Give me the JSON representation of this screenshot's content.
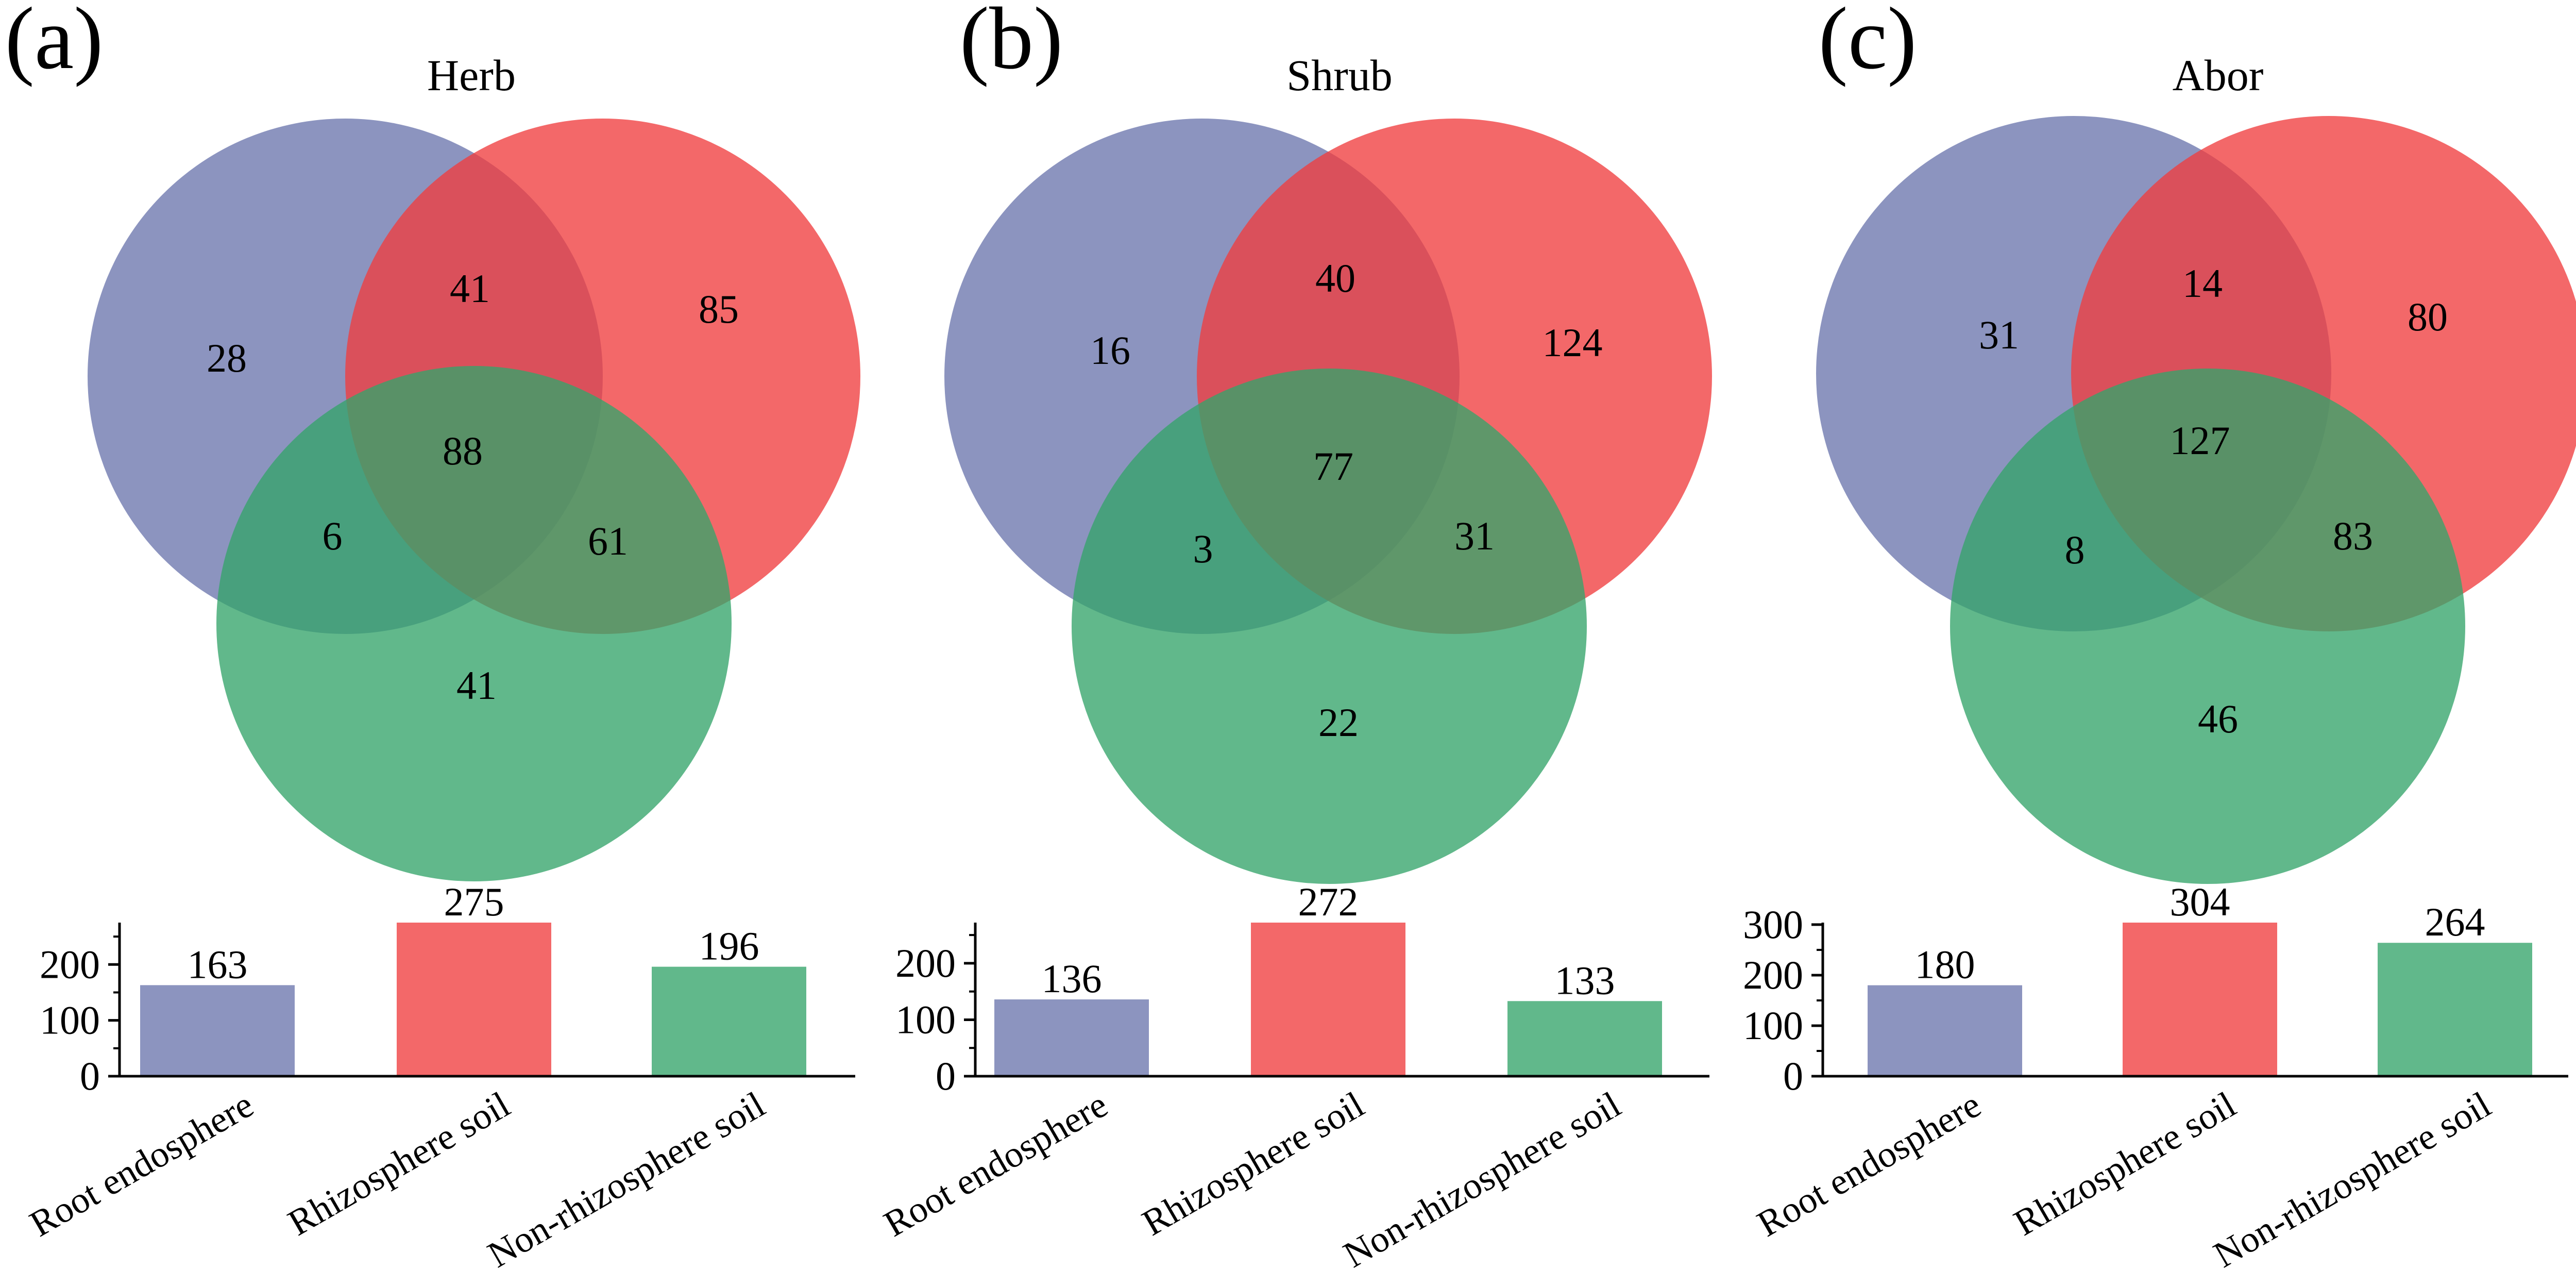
{
  "colors": {
    "root": "#6b76ad",
    "rhizo": "#ef3d3f",
    "nonrhizo": "#34a46a",
    "axis": "#000000"
  },
  "chart_data": [
    {
      "type": "venn",
      "panel": "(a)",
      "title": "Herb",
      "sets": [
        "Root endosphere",
        "Rhizosphere soil",
        "Non-rhizosphere soil"
      ],
      "regions": {
        "root_only": 28,
        "rhizo_only": 85,
        "nonrhizo_only": 41,
        "root_rhizo": 41,
        "root_nonrhizo": 6,
        "rhizo_nonrhizo": 61,
        "all": 88
      },
      "bar": {
        "type": "bar",
        "categories": [
          "Root endosphere",
          "Rhizosphere soil",
          "Non-rhizosphere soil"
        ],
        "values": [
          163,
          275,
          196
        ],
        "ylim": [
          0,
          275
        ],
        "yticks": [
          0,
          100,
          200
        ]
      }
    },
    {
      "type": "venn",
      "panel": "(b)",
      "title": "Shrub",
      "sets": [
        "Root endosphere",
        "Rhizosphere soil",
        "Non-rhizosphere soil"
      ],
      "regions": {
        "root_only": 16,
        "rhizo_only": 124,
        "nonrhizo_only": 22,
        "root_rhizo": 40,
        "root_nonrhizo": 3,
        "rhizo_nonrhizo": 31,
        "all": 77
      },
      "bar": {
        "type": "bar",
        "categories": [
          "Root endosphere",
          "Rhizosphere soil",
          "Non-rhizosphere soil"
        ],
        "values": [
          136,
          272,
          133
        ],
        "ylim": [
          0,
          272
        ],
        "yticks": [
          0,
          100,
          200
        ]
      }
    },
    {
      "type": "venn",
      "panel": "(c)",
      "title": "Abor",
      "sets": [
        "Root endosphere",
        "Rhizosphere soil",
        "Non-rhizosphere soil"
      ],
      "regions": {
        "root_only": 31,
        "rhizo_only": 80,
        "nonrhizo_only": 46,
        "root_rhizo": 14,
        "root_nonrhizo": 8,
        "rhizo_nonrhizo": 83,
        "all": 127
      },
      "bar": {
        "type": "bar",
        "categories": [
          "Root endosphere",
          "Rhizosphere soil",
          "Non-rhizosphere soil"
        ],
        "values": [
          180,
          304,
          264
        ],
        "ylim": [
          0,
          304
        ],
        "yticks": [
          0,
          100,
          200,
          300
        ]
      }
    }
  ]
}
